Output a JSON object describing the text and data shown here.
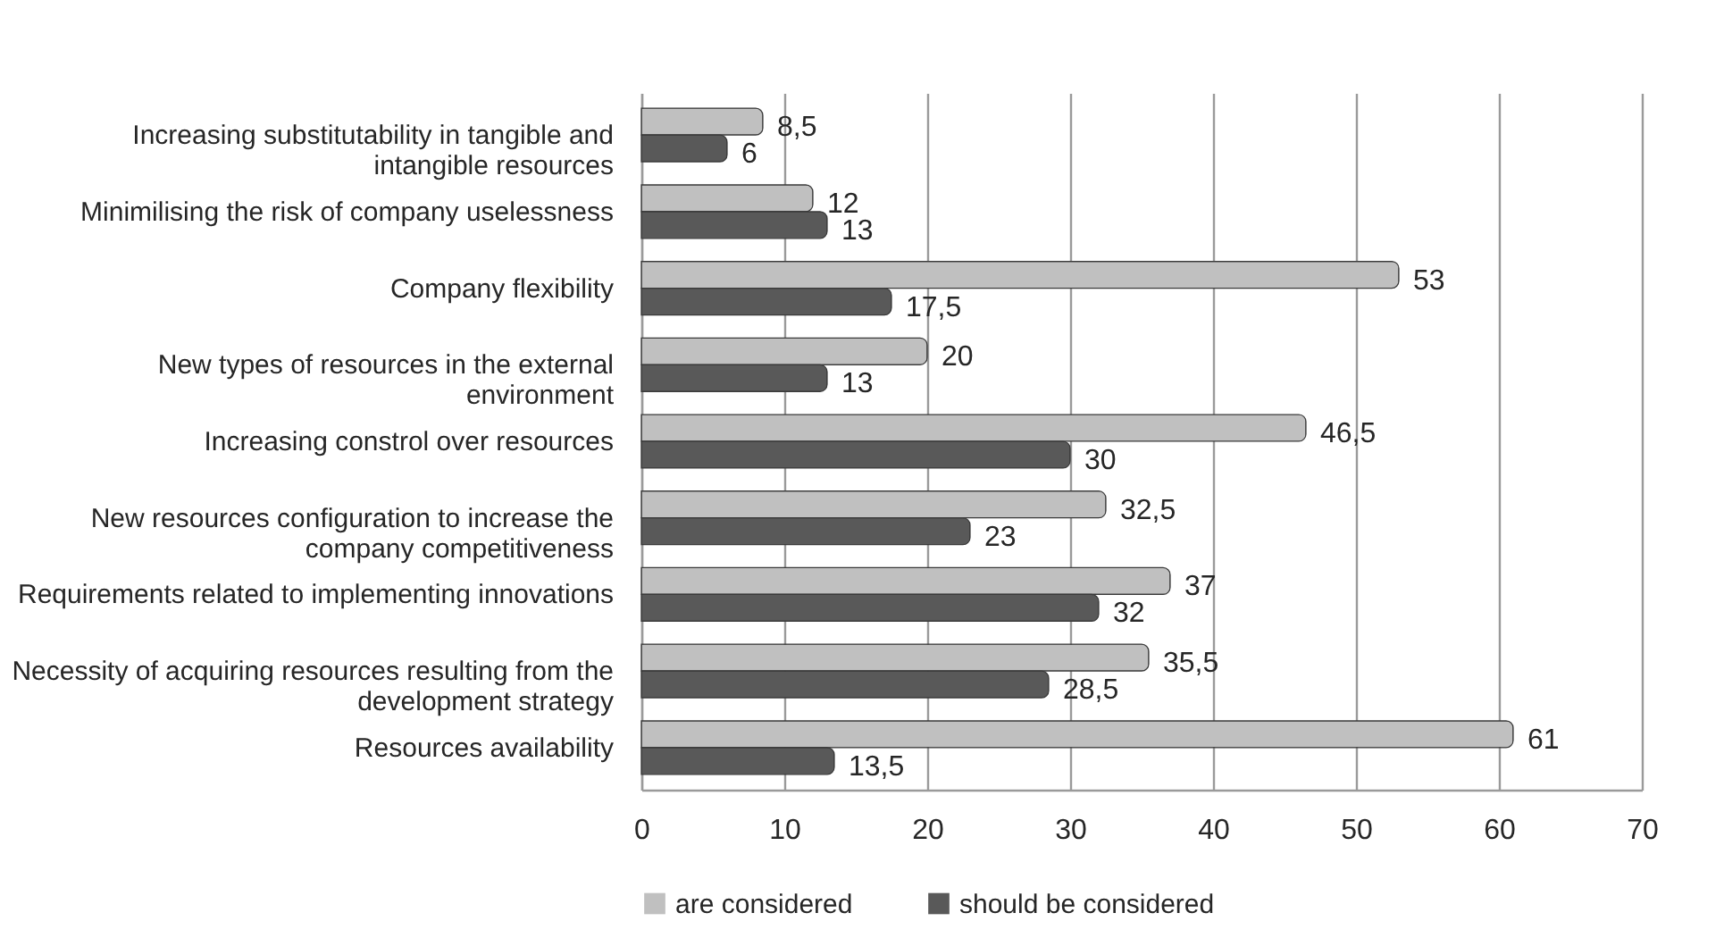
{
  "chart_data": {
    "type": "bar",
    "orientation": "horizontal",
    "categories": [
      "Increasing substitutability  in tangible and intangible resources",
      "Minimilising the risk of company uselessness",
      "Company flexibility",
      "New types of resources in the external environment",
      "Increasing constrol over resources",
      "New resources configuration to increase the company competitiveness",
      "Requirements related to implementing innovations",
      "Necessity of acquiring resources resulting from the development strategy",
      "Resources availability"
    ],
    "series": [
      {
        "name": "are considered",
        "color": "#c0c0c0",
        "values": [
          8.5,
          12,
          53,
          20,
          46.5,
          32.5,
          37,
          35.5,
          61
        ],
        "value_labels": [
          "8,5",
          "12",
          "53",
          "20",
          "46,5",
          "32,5",
          "37",
          "35,5",
          "61"
        ]
      },
      {
        "name": "should be considered",
        "color": "#595959",
        "values": [
          6,
          13,
          17.5,
          13,
          30,
          23,
          32,
          28.5,
          13.5
        ],
        "value_labels": [
          "6",
          "13",
          "17,5",
          "13",
          "30",
          "23",
          "32",
          "28,5",
          "13,5"
        ]
      }
    ],
    "xlim": [
      0,
      70
    ],
    "xticks": [
      0,
      10,
      20,
      30,
      40,
      50,
      60,
      70
    ],
    "grid": "x",
    "legend": "bottom"
  }
}
